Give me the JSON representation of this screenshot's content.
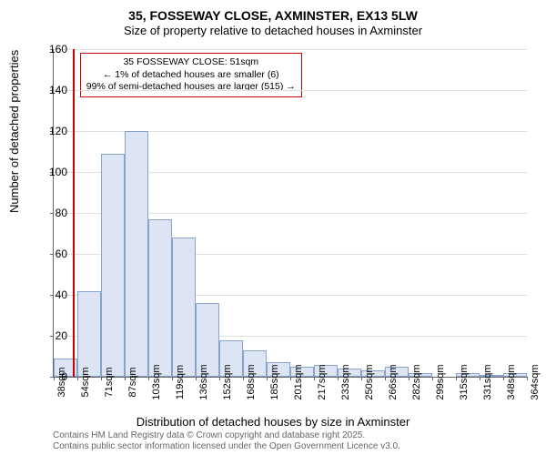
{
  "title": "35, FOSSEWAY CLOSE, AXMINSTER, EX13 5LW",
  "subtitle": "Size of property relative to detached houses in Axminster",
  "ylabel": "Number of detached properties",
  "xlabel": "Distribution of detached houses by size in Axminster",
  "chart": {
    "type": "histogram",
    "ylim": [
      0,
      160
    ],
    "ytick_step": 20,
    "background_color": "#ffffff",
    "grid_color": "#e0e0e0",
    "bar_fill": "#dde5f4",
    "bar_border": "#8aa3cc",
    "marker_color": "#cc0000",
    "xticks": [
      "38sqm",
      "54sqm",
      "71sqm",
      "87sqm",
      "103sqm",
      "119sqm",
      "136sqm",
      "152sqm",
      "168sqm",
      "185sqm",
      "201sqm",
      "217sqm",
      "233sqm",
      "250sqm",
      "266sqm",
      "282sqm",
      "299sqm",
      "315sqm",
      "331sqm",
      "348sqm",
      "364sqm"
    ],
    "values": [
      9,
      42,
      109,
      120,
      77,
      68,
      36,
      18,
      13,
      7,
      5,
      6,
      4,
      3,
      5,
      2,
      0,
      2,
      1,
      2
    ],
    "marker_at_bin": 0.8,
    "label_fontsize": 13,
    "tick_fontsize": 12,
    "title_fontsize": 14
  },
  "info_box": {
    "line1": "35 FOSSEWAY CLOSE: 51sqm",
    "line2": "← 1% of detached houses are smaller (6)",
    "line3": "99% of semi-detached houses are larger (515) →"
  },
  "footer": {
    "line1": "Contains HM Land Registry data © Crown copyright and database right 2025.",
    "line2": "Contains public sector information licensed under the Open Government Licence v3.0."
  }
}
